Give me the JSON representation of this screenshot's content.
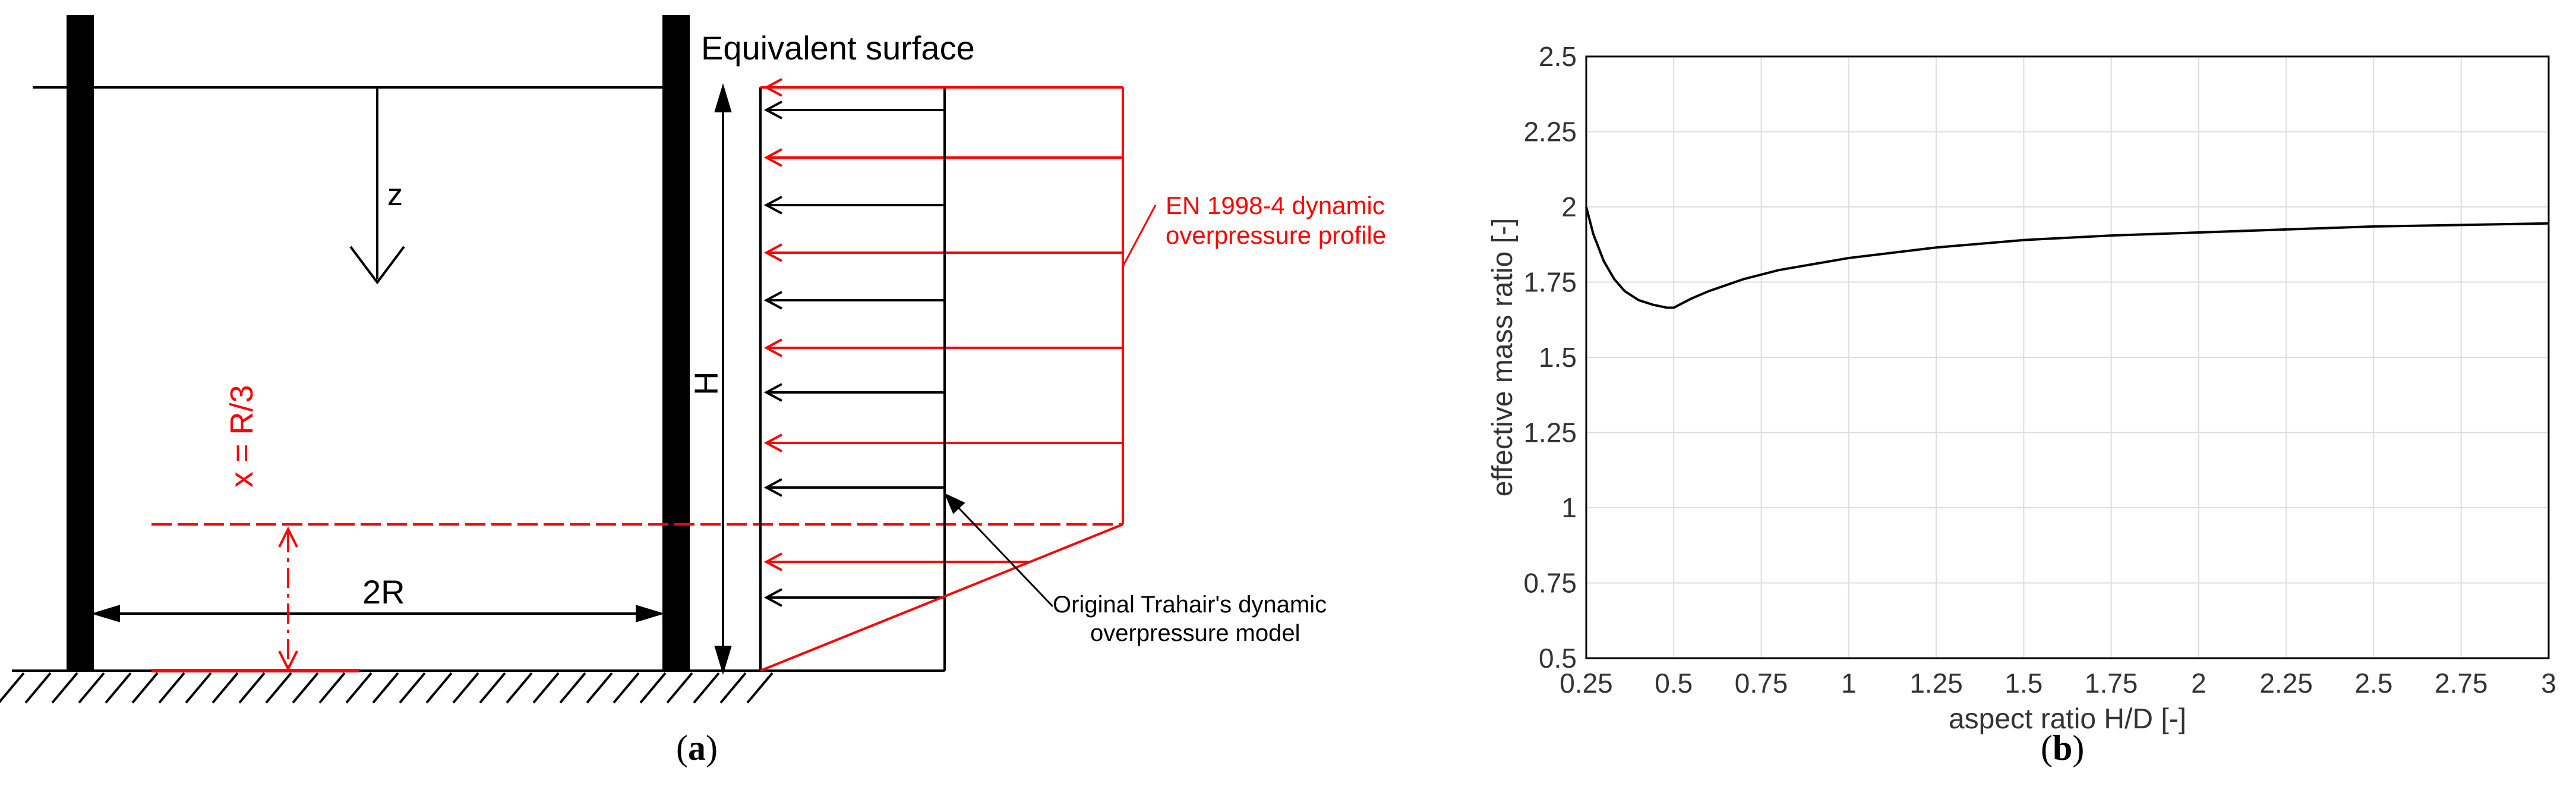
{
  "diagram": {
    "equivalent_surface_label": "Equivalent surface",
    "z_label": "z",
    "h_label": "H",
    "x_label": "x = R/3",
    "two_r_label": "2R",
    "en_profile_label_line1": "EN 1998-4 dynamic",
    "en_profile_label_line2": "overpressure profile",
    "trahair_label_line1": "Original Trahair's dynamic",
    "trahair_label_line2": "overpressure model",
    "caption": "(a)",
    "caption_bold": "a",
    "colors": {
      "ink": "#000000",
      "red": "#ff0000"
    }
  },
  "chart_data": {
    "type": "line",
    "xlabel": "aspect ratio H/D [-]",
    "ylabel": "effective mass ratio [-]",
    "xlim": [
      0.25,
      3
    ],
    "ylim": [
      0.5,
      2.5
    ],
    "xticks": [
      "0.25",
      "0.5",
      "0.75",
      "1",
      "1.25",
      "1.5",
      "1.75",
      "2",
      "2.25",
      "2.5",
      "2.75",
      "3"
    ],
    "yticks": [
      "0.5",
      "0.75",
      "1",
      "1.25",
      "1.5",
      "1.75",
      "2",
      "2.25",
      "2.5"
    ],
    "grid": true,
    "series": [
      {
        "color": "#000000",
        "x": [
          0.25,
          0.27,
          0.3,
          0.33,
          0.36,
          0.4,
          0.44,
          0.48,
          0.5,
          0.55,
          0.6,
          0.7,
          0.8,
          0.9,
          1.0,
          1.25,
          1.5,
          1.75,
          2.0,
          2.25,
          2.5,
          2.75,
          3.0
        ],
        "y": [
          2.0,
          1.91,
          1.82,
          1.76,
          1.72,
          1.69,
          1.675,
          1.665,
          1.665,
          1.695,
          1.72,
          1.76,
          1.79,
          1.81,
          1.83,
          1.865,
          1.89,
          1.905,
          1.915,
          1.925,
          1.935,
          1.94,
          1.945
        ]
      }
    ],
    "caption": "(b)",
    "caption_bold": "b"
  }
}
